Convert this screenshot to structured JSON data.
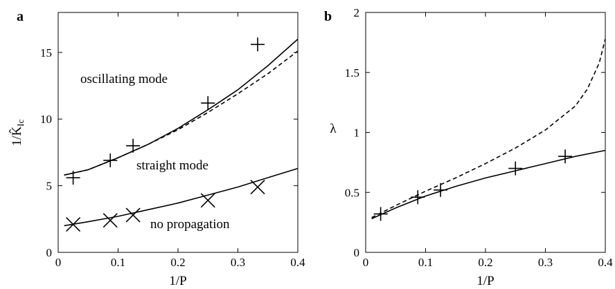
{
  "chart_data": [
    {
      "panel": "a",
      "type": "line",
      "xlabel": "1/P",
      "ylabel": "1/K̂",
      "ylabel_sub": "Ic",
      "xlim": [
        0,
        0.4
      ],
      "ylim": [
        0,
        18
      ],
      "xticks": [
        0,
        0.1,
        0.2,
        0.3,
        0.4
      ],
      "xticklabels": [
        "0",
        "0.1",
        "0.2",
        "0.3",
        "0.4"
      ],
      "yticks": [
        0,
        5,
        10,
        15
      ],
      "yticklabels": [
        "0",
        "5",
        "10",
        "15"
      ],
      "grid": false,
      "annotations": [
        "oscillating mode",
        "straight mode",
        "no propagation"
      ],
      "series": [
        {
          "style": "solid",
          "x": [
            0.01,
            0.05,
            0.1,
            0.15,
            0.2,
            0.25,
            0.3,
            0.35,
            0.4
          ],
          "y": [
            5.8,
            6.2,
            7.1,
            8.1,
            9.3,
            10.7,
            12.2,
            14.0,
            16.0
          ]
        },
        {
          "style": "dashed",
          "x": [
            0.01,
            0.05,
            0.1,
            0.15,
            0.2,
            0.25,
            0.3,
            0.35,
            0.4
          ],
          "y": [
            5.8,
            6.2,
            7.1,
            8.1,
            9.2,
            10.5,
            11.9,
            13.4,
            15.1
          ]
        },
        {
          "style": "solid",
          "x": [
            0.01,
            0.05,
            0.1,
            0.15,
            0.2,
            0.25,
            0.3,
            0.35,
            0.4
          ],
          "y": [
            2.0,
            2.3,
            2.7,
            3.2,
            3.7,
            4.3,
            4.9,
            5.6,
            6.3
          ]
        },
        {
          "style": "plus-markers",
          "x": [
            0.025,
            0.087,
            0.125,
            0.25,
            0.333
          ],
          "y": [
            5.6,
            6.9,
            8.0,
            11.2,
            15.6
          ]
        },
        {
          "style": "x-markers",
          "x": [
            0.025,
            0.087,
            0.125,
            0.25,
            0.333
          ],
          "y": [
            2.1,
            2.4,
            2.8,
            3.9,
            4.9
          ]
        }
      ]
    },
    {
      "panel": "b",
      "type": "line",
      "xlabel": "1/P",
      "ylabel": "λ",
      "xlim": [
        0,
        0.4
      ],
      "ylim": [
        0,
        2
      ],
      "xticks": [
        0,
        0.1,
        0.2,
        0.3,
        0.4
      ],
      "xticklabels": [
        "0",
        "0.1",
        "0.2",
        "0.3",
        "0.4"
      ],
      "yticks": [
        0,
        0.5,
        1,
        1.5,
        2
      ],
      "yticklabels": [
        "0",
        "0.5",
        "1",
        "1.5",
        "2"
      ],
      "grid": false,
      "series": [
        {
          "style": "solid",
          "x": [
            0.01,
            0.05,
            0.1,
            0.15,
            0.2,
            0.25,
            0.3,
            0.35,
            0.4
          ],
          "y": [
            0.28,
            0.37,
            0.47,
            0.55,
            0.62,
            0.68,
            0.74,
            0.8,
            0.85
          ]
        },
        {
          "style": "dashed",
          "x": [
            0.01,
            0.05,
            0.1,
            0.15,
            0.2,
            0.25,
            0.3,
            0.35,
            0.37,
            0.39,
            0.4
          ],
          "y": [
            0.29,
            0.39,
            0.51,
            0.62,
            0.74,
            0.87,
            1.02,
            1.22,
            1.36,
            1.58,
            1.78
          ]
        },
        {
          "style": "plus-markers",
          "x": [
            0.025,
            0.087,
            0.125,
            0.25,
            0.333
          ],
          "y": [
            0.32,
            0.46,
            0.52,
            0.7,
            0.8
          ]
        }
      ]
    }
  ]
}
